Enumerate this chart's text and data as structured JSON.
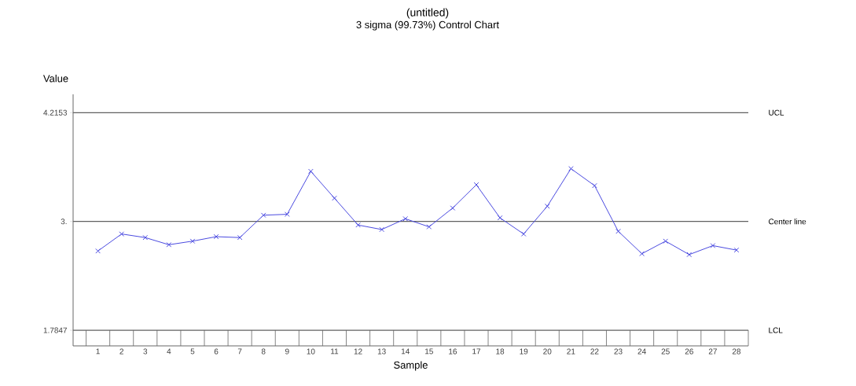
{
  "chart_data": {
    "type": "line",
    "title": "(untitled)",
    "subtitle": "3 sigma (99.73%) Control Chart",
    "xlabel": "Sample",
    "ylabel": "Value",
    "categories": [
      "1",
      "2",
      "3",
      "4",
      "5",
      "6",
      "7",
      "8",
      "9",
      "10",
      "11",
      "12",
      "13",
      "14",
      "15",
      "16",
      "17",
      "18",
      "19",
      "20",
      "21",
      "22",
      "23",
      "24",
      "25",
      "26",
      "27",
      "28"
    ],
    "values": [
      2.67,
      2.86,
      2.82,
      2.74,
      2.78,
      2.83,
      2.82,
      3.07,
      3.08,
      3.56,
      3.26,
      2.96,
      2.91,
      3.03,
      2.94,
      3.15,
      3.41,
      3.04,
      2.86,
      3.17,
      3.59,
      3.4,
      2.89,
      2.64,
      2.78,
      2.63,
      2.73,
      2.68
    ],
    "color": "#4a4ae0",
    "marker": "cross",
    "line_style": "solid",
    "grid": false,
    "ylim": [
      1.61,
      4.42
    ],
    "yticks": [
      1.7847,
      {
        "value": 3,
        "label": "3."
      },
      4.2153
    ],
    "ref_lines": [
      {
        "axis": "y",
        "value": 4.2153,
        "label": "UCL",
        "color": "#606060"
      },
      {
        "axis": "y",
        "value": 3,
        "label": "Center line",
        "color": "#606060"
      },
      {
        "axis": "y",
        "value": 1.7847,
        "label": "LCL",
        "color": "#606060"
      }
    ]
  }
}
